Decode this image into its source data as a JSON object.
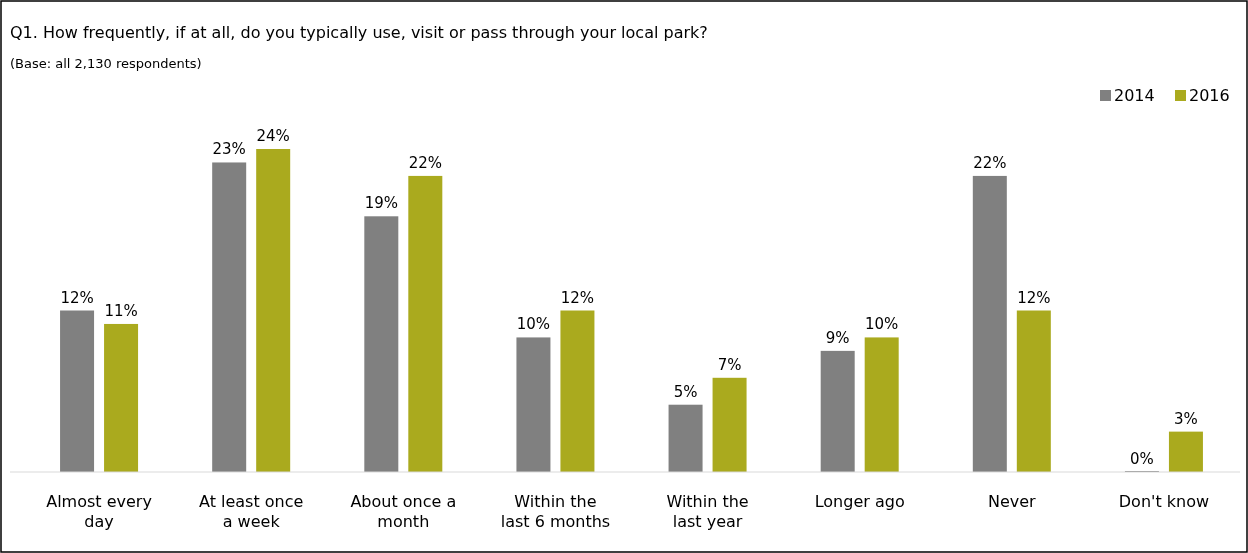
{
  "chart_data": {
    "type": "bar",
    "title": "Q1. How frequently, if at all, do you typically use, visit or pass through your local park?",
    "subtitle": "(Base: all 2,130 respondents)",
    "categories": [
      "Almost every day",
      "At least once a week",
      "About once a month",
      "Within the last 6 months",
      "Within the last year",
      "Longer ago",
      "Never",
      "Don't know"
    ],
    "series": [
      {
        "name": "2014",
        "color": "#808080",
        "values": [
          12,
          23,
          19,
          10,
          5,
          9,
          22,
          0
        ],
        "value_labels": [
          "12%",
          "23%",
          "19%",
          "10%",
          "5%",
          "9%",
          "22%",
          "0%"
        ]
      },
      {
        "name": "2016",
        "color": "#aaaa1e",
        "values": [
          11,
          24,
          22,
          12,
          7,
          10,
          12,
          3
        ],
        "value_labels": [
          "11%",
          "24%",
          "22%",
          "12%",
          "7%",
          "10%",
          "12%",
          "3%"
        ]
      }
    ],
    "legend": "top right"
  }
}
